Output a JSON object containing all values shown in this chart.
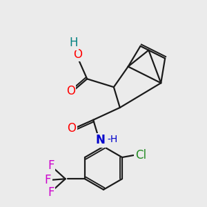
{
  "bg_color": "#ebebeb",
  "bond_color": "#1a1a1a",
  "bond_width": 1.6,
  "atom_colors": {
    "O": "#ff0000",
    "H_acid": "#008080",
    "N": "#0000cc",
    "F": "#cc00cc",
    "Cl": "#228b22",
    "H_n": "#0000cc"
  },
  "font_size_atoms": 12,
  "font_size_small": 10
}
